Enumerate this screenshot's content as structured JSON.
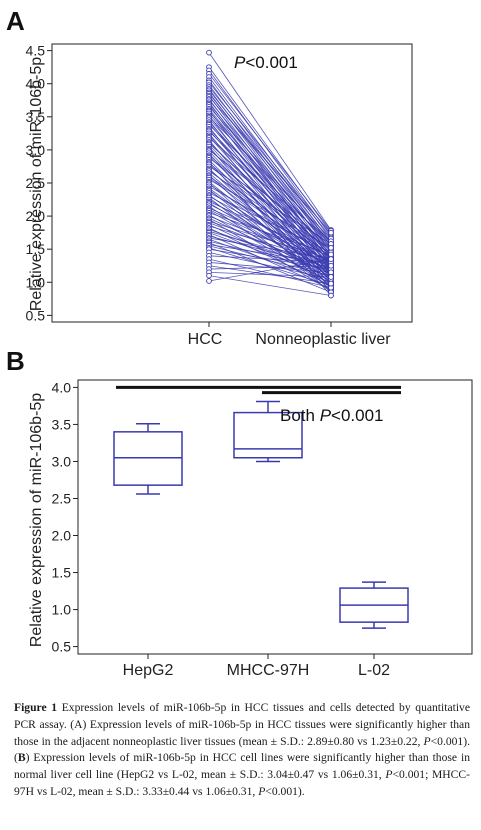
{
  "chart_data": [
    {
      "panel_label": "A",
      "type": "line",
      "chart_subtype": "paired-lines",
      "categories": [
        "HCC",
        "Nonneoplastic liver"
      ],
      "ylabel": "Relative expression of miR-106b-5p",
      "ylim": [
        0.4,
        4.6
      ],
      "yticks": [
        "0.5",
        "1.0",
        "1.5",
        "2.0",
        "2.5",
        "3.0",
        "3.5",
        "4.0",
        "4.5"
      ],
      "annotation": {
        "italic": "P",
        "text": "<0.001"
      },
      "line_color": "#3a3ab0",
      "grid": false,
      "pairs": [
        [
          4.47,
          1.79
        ],
        [
          4.25,
          1.75
        ],
        [
          4.2,
          1.7
        ],
        [
          4.15,
          1.78
        ],
        [
          4.1,
          1.65
        ],
        [
          4.05,
          1.6
        ],
        [
          4.02,
          1.72
        ],
        [
          3.98,
          1.55
        ],
        [
          3.95,
          1.68
        ],
        [
          3.92,
          1.5
        ],
        [
          3.9,
          1.62
        ],
        [
          3.87,
          1.45
        ],
        [
          3.85,
          1.58
        ],
        [
          3.82,
          1.4
        ],
        [
          3.8,
          1.75
        ],
        [
          3.77,
          1.35
        ],
        [
          3.75,
          1.55
        ],
        [
          3.72,
          1.3
        ],
        [
          3.7,
          1.48
        ],
        [
          3.68,
          1.25
        ],
        [
          3.65,
          1.6
        ],
        [
          3.62,
          1.38
        ],
        [
          3.6,
          1.2
        ],
        [
          3.58,
          1.52
        ],
        [
          3.55,
          1.42
        ],
        [
          3.52,
          1.15
        ],
        [
          3.5,
          1.66
        ],
        [
          3.48,
          1.33
        ],
        [
          3.45,
          1.1
        ],
        [
          3.42,
          1.46
        ],
        [
          3.4,
          1.28
        ],
        [
          3.38,
          1.57
        ],
        [
          3.35,
          1.05
        ],
        [
          3.32,
          1.39
        ],
        [
          3.3,
          1.22
        ],
        [
          3.28,
          1.5
        ],
        [
          3.25,
          1.0
        ],
        [
          3.22,
          1.35
        ],
        [
          3.2,
          1.18
        ],
        [
          3.18,
          1.62
        ],
        [
          3.15,
          0.95
        ],
        [
          3.12,
          1.3
        ],
        [
          3.1,
          1.44
        ],
        [
          3.08,
          1.12
        ],
        [
          3.05,
          0.9
        ],
        [
          3.02,
          1.27
        ],
        [
          3.0,
          1.55
        ],
        [
          2.98,
          1.08
        ],
        [
          2.95,
          0.85
        ],
        [
          2.92,
          1.37
        ],
        [
          2.9,
          1.2
        ],
        [
          2.88,
          1.48
        ],
        [
          2.85,
          1.02
        ],
        [
          2.82,
          0.8
        ],
        [
          2.8,
          1.32
        ],
        [
          2.78,
          1.15
        ],
        [
          2.75,
          1.58
        ],
        [
          2.72,
          0.98
        ],
        [
          2.7,
          1.25
        ],
        [
          2.68,
          1.42
        ],
        [
          2.65,
          1.1
        ],
        [
          2.62,
          0.92
        ],
        [
          2.6,
          1.35
        ],
        [
          2.58,
          1.18
        ],
        [
          2.55,
          1.52
        ],
        [
          2.52,
          1.05
        ],
        [
          2.5,
          0.88
        ],
        [
          2.48,
          1.28
        ],
        [
          2.45,
          1.4
        ],
        [
          2.42,
          1.12
        ],
        [
          2.4,
          0.95
        ],
        [
          2.38,
          1.22
        ],
        [
          2.35,
          1.45
        ],
        [
          2.32,
          1.0
        ],
        [
          2.3,
          1.3
        ],
        [
          2.28,
          0.85
        ],
        [
          2.25,
          1.15
        ],
        [
          2.22,
          1.38
        ],
        [
          2.2,
          1.08
        ],
        [
          2.18,
          1.25
        ],
        [
          2.15,
          0.92
        ],
        [
          2.12,
          1.32
        ],
        [
          2.1,
          1.18
        ],
        [
          2.08,
          1.05
        ],
        [
          2.05,
          1.42
        ],
        [
          2.02,
          0.98
        ],
        [
          2.0,
          1.28
        ],
        [
          1.97,
          1.12
        ],
        [
          1.95,
          0.88
        ],
        [
          1.92,
          1.35
        ],
        [
          1.9,
          1.2
        ],
        [
          1.87,
          1.02
        ],
        [
          1.85,
          1.3
        ],
        [
          1.82,
          0.95
        ],
        [
          1.8,
          1.15
        ],
        [
          1.77,
          1.25
        ],
        [
          1.75,
          1.08
        ],
        [
          1.72,
          0.9
        ],
        [
          1.7,
          1.22
        ],
        [
          1.67,
          1.35
        ],
        [
          1.65,
          1.0
        ],
        [
          1.62,
          1.18
        ],
        [
          1.6,
          0.85
        ],
        [
          1.57,
          1.28
        ],
        [
          1.55,
          1.1
        ],
        [
          1.52,
          0.95
        ],
        [
          1.5,
          1.2
        ],
        [
          1.45,
          1.05
        ],
        [
          1.4,
          1.3
        ],
        [
          1.35,
          0.92
        ],
        [
          1.3,
          1.15
        ],
        [
          1.25,
          0.98
        ],
        [
          1.2,
          1.25
        ],
        [
          1.15,
          1.08
        ],
        [
          1.1,
          0.8
        ],
        [
          1.02,
          1.35
        ]
      ]
    },
    {
      "panel_label": "B",
      "type": "box",
      "categories": [
        "HepG2",
        "MHCC-97H",
        "L-02"
      ],
      "ylabel": "Relative expression of miR-106b-5p",
      "ylim": [
        0.4,
        4.1
      ],
      "yticks": [
        "0.5",
        "1.0",
        "1.5",
        "2.0",
        "2.5",
        "3.0",
        "3.5",
        "4.0"
      ],
      "boxes": [
        {
          "name": "HepG2",
          "min": 2.56,
          "q1": 2.68,
          "median": 3.05,
          "q3": 3.4,
          "max": 3.51
        },
        {
          "name": "MHCC-97H",
          "min": 3.0,
          "q1": 3.05,
          "median": 3.17,
          "q3": 3.66,
          "max": 3.81
        },
        {
          "name": "L-02",
          "min": 0.75,
          "q1": 0.83,
          "median": 1.06,
          "q3": 1.29,
          "max": 1.37
        }
      ],
      "annotation": {
        "prefix": "Both ",
        "italic": "P",
        "text": "<0.001"
      },
      "brackets": [
        {
          "from": "HepG2",
          "to": "L-02",
          "y": 4.0
        },
        {
          "from": "MHCC-97H",
          "to": "L-02",
          "y": 3.93
        }
      ],
      "box_color": "#3a3ab0",
      "grid": false
    }
  ],
  "caption": {
    "label": "Figure 1",
    "parts": [
      {
        "t": " Expression levels of miR-106b-5p in HCC tissues and cells detected by quantitative PCR assay. (A) Expression levels of miR-106b-5p in HCC tissues were significantly higher than those in the adjacent nonneoplastic liver tissues (mean ± S.D.: 2.89±0.80 vs 1.23±0.22, "
      },
      {
        "t": "P",
        "i": true
      },
      {
        "t": "<0.001). ("
      },
      {
        "t": "B",
        "b": true
      },
      {
        "t": ") Expression levels of miR-106b-5p in HCC cell lines were significantly higher than those in normal liver cell line (HepG2 vs L-02, mean ± S.D.: 3.04±0.47 vs 1.06±0.31, "
      },
      {
        "t": "P",
        "i": true
      },
      {
        "t": "<0.001; MHCC-97H vs L-02, mean ± S.D.: 3.33±0.44 vs 1.06±0.31, "
      },
      {
        "t": "P",
        "i": true
      },
      {
        "t": "<0.001)."
      }
    ]
  }
}
